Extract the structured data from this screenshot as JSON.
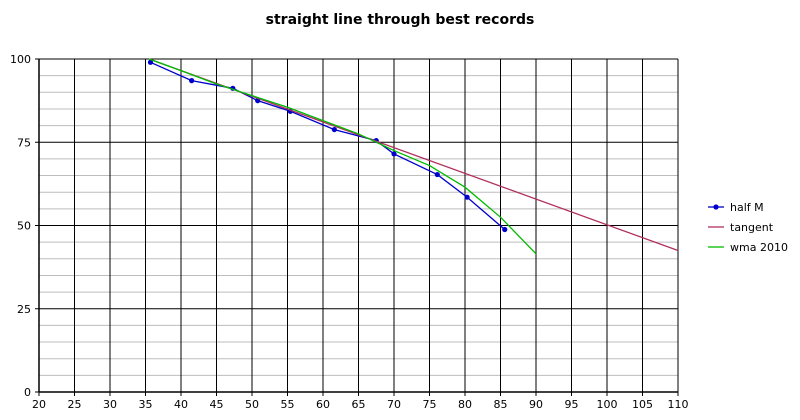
{
  "chart_data": {
    "type": "line",
    "title": "straight line through best records",
    "xlabel": "",
    "ylabel": "",
    "xlim": [
      20,
      110
    ],
    "ylim": [
      0,
      100
    ],
    "x_ticks": [
      20,
      25,
      30,
      35,
      40,
      45,
      50,
      55,
      60,
      65,
      70,
      75,
      80,
      85,
      90,
      95,
      100,
      105,
      110
    ],
    "y_ticks": [
      0,
      25,
      50,
      75,
      100
    ],
    "grid": {
      "major_x_step": 5,
      "major_y_step": 25,
      "minor_y_step": 5,
      "x_grid": true,
      "y_grid": true
    },
    "legend": {
      "placement": "right"
    },
    "series": [
      {
        "name": "half M",
        "color": "#0000cc",
        "marker": "dot",
        "x": [
          35.7,
          41.5,
          47.3,
          50.8,
          55.4,
          61.6,
          67.5,
          70.0,
          76.1,
          80.3,
          85.6
        ],
        "y": [
          99,
          93.5,
          91.2,
          87.5,
          84.3,
          78.8,
          75.5,
          71.5,
          65.3,
          58.5,
          48.8
        ]
      },
      {
        "name": "tangent",
        "color": "#b03060",
        "marker": "none",
        "x": [
          35.5,
          110
        ],
        "y": [
          100,
          42.5
        ]
      },
      {
        "name": "wma 2010",
        "color": "#00bb00",
        "marker": "none",
        "x": [
          35.5,
          40,
          45,
          50,
          55,
          60,
          65,
          70,
          75,
          80,
          85,
          90
        ],
        "y": [
          100,
          96.5,
          92.5,
          89,
          85.5,
          81.5,
          77.5,
          72.5,
          68,
          61.5,
          52.5,
          41.5
        ]
      }
    ]
  }
}
